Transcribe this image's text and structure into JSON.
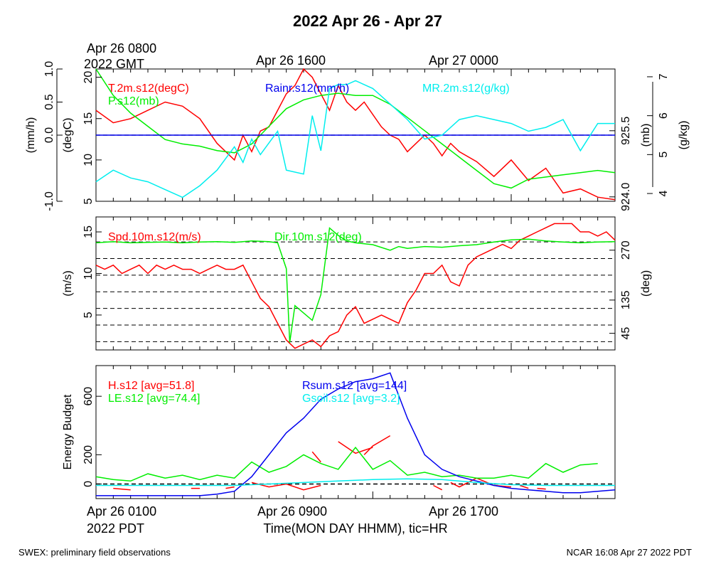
{
  "title": "2022 Apr 26 - Apr 27",
  "footer_left": "SWEX: preliminary field observations",
  "footer_right": "NCAR 16:08 Apr 27 2022 PDT",
  "top_time_labels": {
    "first_line1": "Apr 26 0800",
    "first_line2": "2022 GMT",
    "second": "Apr 26 1600",
    "third": "Apr 27 0000"
  },
  "bottom_time_labels": {
    "first_line1": "Apr 26 0100",
    "first_line2": "2022 PDT",
    "second": "Apr 26 0900",
    "third": "Apr 26 1700"
  },
  "xlabel": "Time(MON DAY HHMM), tic=HR",
  "colors": {
    "red": "#ff0000",
    "green": "#00ee00",
    "blue": "#0000ee",
    "cyan": "#00eeee",
    "black": "#000000"
  },
  "panels": [
    {
      "id": "met",
      "left_axes": [
        {
          "label": "(mm/h)",
          "ticks": [
            "-1.0",
            "0.0",
            "0.5",
            "1.0"
          ],
          "ylim": [
            -1.0,
            1.0
          ]
        },
        {
          "label": "(degC)",
          "ticks": [
            "5",
            "10",
            "15",
            "20"
          ],
          "ylim": [
            5,
            21
          ]
        }
      ],
      "right_axes": [
        {
          "label": "(mb)",
          "ticks": [
            "924.0",
            "925.5"
          ],
          "ylim": [
            923.9,
            926.9
          ]
        },
        {
          "label": "(g/kg)",
          "ticks": [
            "4",
            "5",
            "6",
            "7"
          ],
          "ylim": [
            3.8,
            7.2
          ]
        }
      ],
      "legend": [
        "T.2m.s12(degC)",
        "P.s12(mb)",
        "Rainr.s12(mm/h)",
        "MR.2m.s12(g/kg)"
      ]
    },
    {
      "id": "wind",
      "left_axes": [
        {
          "label": "(m/s)",
          "ticks": [
            "5",
            "10",
            "15"
          ],
          "ylim": [
            0.8,
            16.8
          ]
        }
      ],
      "right_axes": [
        {
          "label": "(deg)",
          "ticks": [
            "45",
            "135",
            "270"
          ],
          "ylim": [
            0,
            360
          ]
        }
      ],
      "legend": [
        "Spd.10m.s12(m/s)",
        "Dir.10m.s12(deg)"
      ]
    },
    {
      "id": "energy",
      "left_axes": [
        {
          "label": "Energy Budget",
          "ticks": [
            "0",
            "200",
            "600"
          ],
          "ylim": [
            -100,
            810
          ]
        }
      ],
      "right_axes": [],
      "legend": [
        "H.s12 [avg=51.8]",
        "LE.s12 [avg=74.4]",
        "Rsum.s12 [avg=144]",
        "Gsoil.s12 [avg=3.2]"
      ]
    }
  ],
  "chart_data": [
    {
      "type": "line",
      "x_unit": "hours since Apr 26 0100 PDT",
      "xlim": [
        0,
        30
      ],
      "series": [
        {
          "name": "T.2m.s12(degC)",
          "axis": "degC",
          "color": "#ff0000",
          "x": [
            0,
            1,
            2,
            3,
            4,
            5,
            6,
            7,
            8,
            8.5,
            9,
            9.5,
            10,
            10.5,
            11,
            11.5,
            12,
            12.5,
            13,
            13.5,
            14,
            14.5,
            15,
            15.5,
            16,
            16.5,
            17,
            17.5,
            18,
            18.5,
            19,
            19.5,
            20,
            20.5,
            21,
            22,
            23,
            24,
            25,
            26,
            27,
            28,
            29,
            30
          ],
          "y": [
            16,
            14.5,
            15,
            16,
            17,
            16.5,
            15,
            12,
            10,
            13,
            11,
            13.5,
            14,
            16,
            18,
            19,
            21,
            20,
            18,
            16,
            19,
            17,
            16,
            17,
            15.5,
            14,
            13,
            12.5,
            11,
            12,
            13,
            12,
            10.5,
            12,
            11,
            9.8,
            8,
            10,
            7.5,
            9,
            6,
            6.5,
            5.5,
            5.2
          ]
        },
        {
          "name": "P.s12(mb)",
          "axis": "mb",
          "color": "#00ee00",
          "x": [
            0,
            1,
            2,
            3,
            4,
            5,
            6,
            7,
            8,
            9,
            10,
            11,
            12,
            13,
            14,
            15,
            16,
            17,
            18,
            19,
            20,
            21,
            22,
            23,
            24,
            25,
            26,
            27,
            28,
            29,
            30
          ],
          "y": [
            926.9,
            926.3,
            925.9,
            925.6,
            925.3,
            925.2,
            925.15,
            925.05,
            925.0,
            925.2,
            925.6,
            926.0,
            926.2,
            926.3,
            926.35,
            926.3,
            926.3,
            926.1,
            925.8,
            925.5,
            925.2,
            924.9,
            924.6,
            924.3,
            924.2,
            924.4,
            924.45,
            924.5,
            924.55,
            924.6,
            924.55
          ]
        },
        {
          "name": "Rainr.s12(mm/h)",
          "axis": "mm/h",
          "color": "#0000ee",
          "x": [
            0,
            30
          ],
          "y": [
            0,
            0
          ]
        },
        {
          "name": "MR.2m.s12(g/kg)",
          "axis": "g/kg",
          "color": "#00eeee",
          "x": [
            0,
            1,
            2,
            3,
            4,
            5,
            6,
            7,
            8,
            8.5,
            9,
            9.5,
            10,
            10.5,
            11,
            12,
            12.5,
            13,
            13.5,
            14,
            14.5,
            15,
            16,
            17,
            18,
            19,
            20,
            21,
            22,
            23,
            24,
            25,
            26,
            27,
            28,
            29,
            30
          ],
          "y": [
            4.3,
            4.6,
            4.4,
            4.3,
            4.1,
            3.9,
            4.2,
            4.6,
            5.2,
            4.8,
            5.4,
            5.0,
            5.3,
            5.6,
            4.6,
            4.5,
            6.0,
            5.1,
            6.7,
            6.8,
            6.8,
            6.9,
            6.7,
            6.3,
            5.9,
            5.4,
            5.5,
            5.9,
            6.0,
            5.9,
            5.8,
            5.6,
            5.7,
            5.9,
            5.1,
            5.8,
            5.8
          ]
        }
      ]
    },
    {
      "type": "line",
      "x_unit": "hours since Apr 26 0100 PDT",
      "xlim": [
        0,
        30
      ],
      "series": [
        {
          "name": "Spd.10m.s12(m/s)",
          "axis": "m/s",
          "color": "#ff0000",
          "x": [
            0,
            0.5,
            1,
            1.5,
            2,
            2.5,
            3,
            3.5,
            4,
            4.5,
            5,
            5.5,
            6,
            6.5,
            7,
            7.5,
            8,
            8.5,
            9,
            9.5,
            10,
            10.5,
            11,
            11.5,
            12,
            12.5,
            13,
            13.5,
            14,
            14.5,
            15,
            15.5,
            16,
            16.5,
            17,
            17.5,
            18,
            18.5,
            19,
            19.5,
            20,
            20.5,
            21,
            21.5,
            22,
            22.5,
            23,
            23.5,
            24,
            24.5,
            25,
            25.5,
            26,
            26.5,
            27,
            27.5,
            28,
            28.5,
            29,
            29.5,
            30
          ],
          "y": [
            11,
            10.5,
            11,
            10,
            10.5,
            11,
            10,
            11,
            10.5,
            11,
            10.5,
            10.5,
            10,
            10.5,
            11,
            10.5,
            10.5,
            11,
            9,
            7,
            6,
            4,
            2,
            1,
            1.5,
            2,
            1.2,
            2.5,
            3,
            5,
            6,
            4,
            4.5,
            5,
            4.5,
            4,
            6.5,
            8,
            10,
            10,
            11,
            9,
            8.5,
            11,
            12,
            12.5,
            13,
            13.5,
            13,
            14,
            14.5,
            15,
            15.5,
            16,
            16,
            16,
            15,
            15,
            14.5,
            15,
            14
          ]
        },
        {
          "name": "Dir.10m.s12(deg)",
          "axis": "deg",
          "color": "#00ee00",
          "x": [
            0,
            1,
            2,
            3,
            4,
            5,
            6,
            7,
            8,
            9,
            10,
            10.5,
            11,
            11.2,
            11.5,
            12,
            12.5,
            13,
            13.5,
            14,
            14.5,
            15,
            16,
            17,
            17.5,
            18,
            19,
            20,
            21,
            22,
            23,
            24,
            25,
            26,
            27,
            28,
            29,
            30
          ],
          "y": [
            290,
            293,
            290,
            291,
            292,
            290,
            292,
            293,
            291,
            295,
            293,
            290,
            220,
            20,
            120,
            100,
            80,
            150,
            330,
            310,
            295,
            290,
            285,
            270,
            280,
            275,
            280,
            278,
            282,
            285,
            292,
            298,
            300,
            295,
            292,
            290,
            292,
            293
          ]
        }
      ]
    },
    {
      "type": "line",
      "x_unit": "hours since Apr 26 0100 PDT",
      "xlim": [
        0,
        30
      ],
      "series": [
        {
          "name": "H.s12 [avg=51.8]",
          "color": "#ff0000",
          "x": [
            1,
            2,
            null,
            5.5,
            6,
            null,
            7.5,
            8,
            null,
            9,
            10,
            11,
            12,
            13,
            null,
            12.5,
            13,
            null,
            14,
            15,
            16,
            null,
            15.5,
            16,
            17,
            null,
            19.5,
            20,
            null,
            20.5,
            21,
            22,
            23,
            24,
            null,
            24.5,
            25,
            null,
            25.5,
            26
          ],
          "y": [
            -30,
            -40,
            null,
            -30,
            -30,
            null,
            -30,
            -20,
            null,
            10,
            -20,
            0,
            -40,
            -10,
            null,
            220,
            150,
            null,
            290,
            210,
            250,
            null,
            200,
            260,
            330,
            null,
            -10,
            -40,
            null,
            10,
            -20,
            40,
            -10,
            -20,
            null,
            -10,
            -30,
            null,
            -30,
            -35
          ]
        },
        {
          "name": "LE.s12 [avg=74.4]",
          "color": "#00ee00",
          "x": [
            0,
            1,
            2,
            3,
            4,
            5,
            6,
            7,
            8,
            9,
            10,
            11,
            12,
            13,
            14,
            15,
            16,
            17,
            18,
            19,
            20,
            21,
            22,
            23,
            24,
            25,
            26,
            27,
            28,
            29
          ],
          "y": [
            50,
            30,
            20,
            70,
            40,
            60,
            30,
            60,
            40,
            150,
            80,
            120,
            200,
            140,
            100,
            250,
            100,
            160,
            60,
            80,
            50,
            60,
            40,
            40,
            60,
            40,
            140,
            80,
            130,
            140
          ]
        },
        {
          "name": "Rsum.s12 [avg=144]",
          "color": "#0000ee",
          "x": [
            0,
            1,
            2,
            3,
            4,
            5,
            6,
            7,
            8,
            9,
            10,
            11,
            12,
            13,
            14,
            15,
            16,
            17,
            18,
            19,
            20,
            21,
            22,
            23,
            24,
            25,
            26,
            27,
            28,
            29,
            30
          ],
          "y": [
            -80,
            -80,
            -80,
            -80,
            -80,
            -80,
            -80,
            -70,
            -50,
            50,
            200,
            350,
            450,
            580,
            650,
            700,
            720,
            760,
            450,
            200,
            100,
            50,
            20,
            -10,
            -30,
            -40,
            -50,
            -60,
            -60,
            -50,
            -40
          ]
        },
        {
          "name": "Gsoil.s12 [avg=3.2]",
          "color": "#00eeee",
          "x": [
            0,
            2,
            4,
            6,
            8,
            10,
            12,
            14,
            16,
            18,
            20,
            22,
            24,
            26,
            28,
            30
          ],
          "y": [
            -10,
            -10,
            -10,
            -10,
            -10,
            0,
            10,
            20,
            30,
            35,
            30,
            10,
            -5,
            -10,
            -10,
            -10
          ]
        }
      ]
    }
  ]
}
